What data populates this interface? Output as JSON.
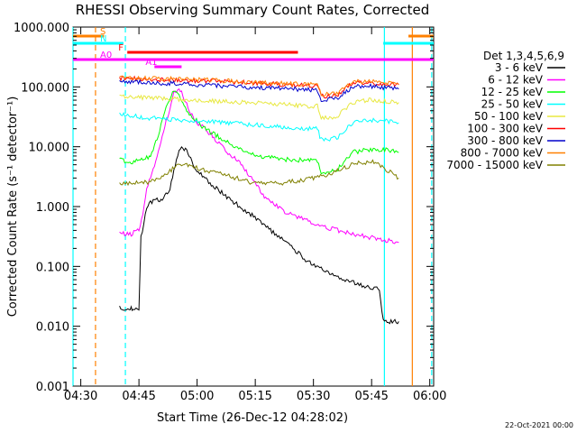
{
  "chart_data": {
    "type": "line",
    "title": "RHESSI Observing Summary Count Rates, Corrected",
    "xlabel": "Start Time (26-Dec-12 04:28:02)",
    "ylabel": "Corrected Count Rate (s⁻¹ detector⁻¹)",
    "x_unit": "minutes after 04:28:02 UT",
    "xlim": [
      0,
      93
    ],
    "ylim": [
      0.001,
      1000
    ],
    "y_scale": "log",
    "x_ticks": [
      {
        "label": "04:30",
        "value": 2
      },
      {
        "label": "04:45",
        "value": 17
      },
      {
        "label": "05:00",
        "value": 32
      },
      {
        "label": "05:15",
        "value": 47
      },
      {
        "label": "05:30",
        "value": 62
      },
      {
        "label": "05:45",
        "value": 77
      },
      {
        "label": "06:00",
        "value": 92
      }
    ],
    "y_ticks": [
      {
        "label": "1000.000",
        "value": 1000
      },
      {
        "label": "100.000",
        "value": 100
      },
      {
        "label": "10.000",
        "value": 10
      },
      {
        "label": "1.000",
        "value": 1
      },
      {
        "label": "0.100",
        "value": 0.1
      },
      {
        "label": "0.010",
        "value": 0.01
      },
      {
        "label": "0.001",
        "value": 0.001
      }
    ],
    "legend_title": "Det 1,3,4,5,6,9",
    "legend_position": "right",
    "series": [
      {
        "name": "3 - 6 keV",
        "color": "#000000",
        "x": [
          12,
          14.5,
          15,
          15.5,
          17,
          17.5,
          19,
          21,
          23,
          25,
          26,
          27,
          28,
          29,
          30,
          31,
          32,
          34,
          37,
          40,
          44,
          48,
          52,
          56,
          60,
          64,
          68,
          72,
          76,
          79,
          80,
          81,
          82,
          83,
          84
        ],
        "y": [
          0.02,
          0.02,
          0.02,
          0.02,
          0.02,
          0.3,
          1.0,
          1.3,
          1.3,
          2.0,
          4.0,
          7.5,
          10.0,
          9.0,
          7.0,
          5.0,
          4.0,
          3.0,
          2.0,
          1.4,
          0.9,
          0.6,
          0.35,
          0.22,
          0.13,
          0.09,
          0.065,
          0.055,
          0.045,
          0.042,
          0.012,
          0.012,
          0.012,
          0.012,
          0.012
        ]
      },
      {
        "name": "6 - 12 keV",
        "color": "#ff00ff",
        "x": [
          12,
          15,
          17,
          18,
          19,
          21,
          23,
          25,
          26,
          27,
          28,
          29,
          30,
          31,
          32,
          34,
          36,
          38,
          40,
          43,
          46,
          48,
          50,
          55,
          60,
          65,
          70,
          75,
          80,
          84
        ],
        "y": [
          0.35,
          0.35,
          0.4,
          0.7,
          2.0,
          5.0,
          15.0,
          45.0,
          80.0,
          90.0,
          80.0,
          55.0,
          40.0,
          30.0,
          25.0,
          20.0,
          15.0,
          11.0,
          8.0,
          5.5,
          3.0,
          2.0,
          1.3,
          0.8,
          0.6,
          0.45,
          0.38,
          0.32,
          0.28,
          0.25
        ]
      },
      {
        "name": "12 - 25 keV",
        "color": "#00ff00",
        "x": [
          12,
          15,
          18,
          20,
          22,
          24,
          26,
          28,
          30,
          34,
          38,
          42,
          46,
          48,
          52,
          56,
          60,
          63,
          64,
          68,
          72,
          76,
          80,
          84
        ],
        "y": [
          6.0,
          5.5,
          6.0,
          7.0,
          15.0,
          50.0,
          90.0,
          60.0,
          35.0,
          20.0,
          14.0,
          10.0,
          8.0,
          7.0,
          6.5,
          6.0,
          6.0,
          6.0,
          3.5,
          4.0,
          8.0,
          9.0,
          9.0,
          8.0
        ]
      },
      {
        "name": "25 - 50 keV",
        "color": "#00ffff",
        "x": [
          12,
          20,
          28,
          36,
          44,
          52,
          60,
          63,
          64,
          68,
          72,
          76,
          80,
          84
        ],
        "y": [
          35,
          30,
          28,
          26,
          24,
          22,
          20,
          20,
          13,
          14,
          25,
          28,
          27,
          25
        ]
      },
      {
        "name": "50 - 100 keV",
        "color": "#e8e840",
        "x": [
          12,
          20,
          28,
          36,
          44,
          52,
          60,
          63,
          64,
          68,
          72,
          76,
          80,
          84
        ],
        "y": [
          70,
          65,
          62,
          58,
          55,
          52,
          48,
          48,
          30,
          32,
          55,
          60,
          58,
          55
        ]
      },
      {
        "name": "100 - 300 keV",
        "color": "#ff0000",
        "x": [
          12,
          20,
          28,
          36,
          44,
          52,
          60,
          63,
          64,
          68,
          72,
          76,
          80,
          84
        ],
        "y": [
          140,
          135,
          130,
          125,
          118,
          112,
          105,
          105,
          70,
          72,
          115,
          120,
          112,
          108
        ]
      },
      {
        "name": "300 - 800 keV",
        "color": "#0000cc",
        "x": [
          12,
          20,
          28,
          36,
          44,
          52,
          60,
          63,
          64,
          68,
          72,
          76,
          80,
          84
        ],
        "y": [
          125,
          118,
          112,
          105,
          100,
          95,
          90,
          90,
          62,
          64,
          100,
          105,
          98,
          92
        ]
      },
      {
        "name": "800 - 7000 keV",
        "color": "#ff8000",
        "x": [
          12,
          20,
          28,
          36,
          44,
          52,
          60,
          63,
          64,
          68,
          72,
          76,
          80,
          84
        ],
        "y": [
          145,
          140,
          135,
          130,
          122,
          116,
          110,
          110,
          75,
          78,
          120,
          125,
          118,
          112
        ]
      },
      {
        "name": "7000 - 15000 keV",
        "color": "#808000",
        "x": [
          12,
          16,
          20,
          24,
          27,
          30,
          34,
          38,
          42,
          46,
          50,
          54,
          58,
          62,
          66,
          70,
          74,
          78,
          80,
          84
        ],
        "y": [
          2.5,
          2.5,
          2.6,
          3.5,
          5.0,
          5.0,
          4.0,
          3.5,
          3.0,
          2.5,
          2.5,
          2.5,
          2.7,
          3.0,
          3.5,
          4.5,
          5.5,
          5.5,
          4.5,
          3.0
        ]
      }
    ],
    "flag_bars": [
      {
        "label": "S",
        "color": "#ff8000",
        "ranges": [
          [
            0,
            8
          ],
          [
            86.5,
            93
          ]
        ]
      },
      {
        "label": "N",
        "color": "#00ffff",
        "ranges": [
          [
            0,
            13
          ],
          [
            80,
            93
          ]
        ]
      },
      {
        "label": "F",
        "color": "#ff0000",
        "ranges": [
          [
            14,
            58
          ]
        ]
      },
      {
        "label": "A0",
        "color": "#ff00ff",
        "ranges": [
          [
            0,
            93
          ]
        ]
      },
      {
        "label": "A1",
        "color": "#ff00ff",
        "ranges": [
          [
            21,
            28
          ]
        ]
      }
    ],
    "vertical_lines": [
      {
        "x": 0,
        "color": "#00ffff",
        "style": "solid"
      },
      {
        "x": 5.8,
        "color": "#ff8000",
        "style": "dashed"
      },
      {
        "x": 13.5,
        "color": "#00ffff",
        "style": "dashed"
      },
      {
        "x": 80.3,
        "color": "#00ffff",
        "style": "solid"
      },
      {
        "x": 87.5,
        "color": "#ff8000",
        "style": "solid"
      },
      {
        "x": 92.5,
        "color": "#00ffff",
        "style": "dashed"
      }
    ],
    "footer_date": "22-Oct-2021 00:00"
  }
}
